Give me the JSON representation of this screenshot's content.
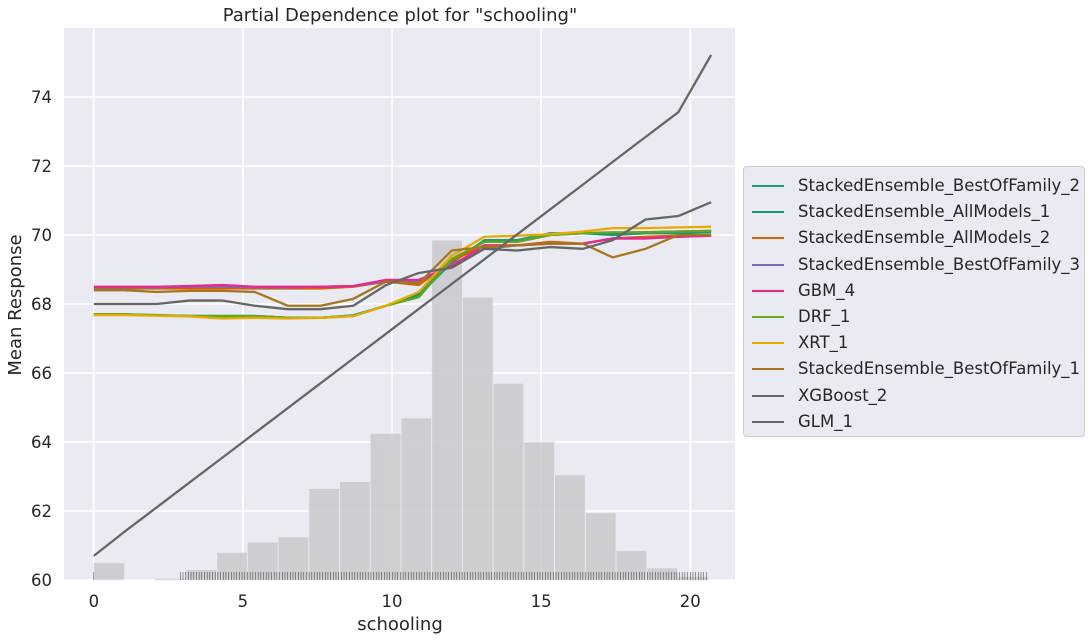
{
  "chart_data": {
    "type": "line",
    "title": "Partial Dependence plot for \"schooling\"",
    "xlabel": "schooling",
    "ylabel": "Mean Response",
    "xlim": [
      -1,
      21.5
    ],
    "ylim": [
      60,
      76
    ],
    "x_ticks": [
      0,
      5,
      10,
      15,
      20
    ],
    "y_ticks": [
      60,
      62,
      64,
      66,
      68,
      70,
      72,
      74
    ],
    "grid": true,
    "legend_position": "right",
    "x": [
      0,
      1.0,
      2.1,
      3.2,
      4.3,
      5.4,
      6.5,
      7.6,
      8.7,
      9.8,
      10.9,
      12.0,
      13.1,
      14.2,
      15.3,
      16.4,
      17.4,
      18.5,
      19.6,
      20.7
    ],
    "series": [
      {
        "name": "StackedEnsemble_BestOfFamily_2",
        "color": "#1b9e77",
        "values": [
          67.7,
          67.7,
          67.67,
          67.65,
          67.65,
          67.65,
          67.6,
          67.6,
          67.67,
          67.95,
          68.25,
          69.2,
          69.85,
          69.85,
          70.05,
          70.05,
          70.05,
          70.08,
          70.1,
          70.12
        ]
      },
      {
        "name": "StackedEnsemble_AllModels_1",
        "color": "#16977a",
        "values": [
          67.7,
          67.7,
          67.67,
          67.65,
          67.65,
          67.65,
          67.6,
          67.6,
          67.67,
          67.95,
          68.3,
          69.3,
          69.8,
          69.8,
          70.0,
          70.05,
          70.0,
          70.05,
          70.05,
          70.08
        ]
      },
      {
        "name": "StackedEnsemble_AllModels_2",
        "color": "#d95f02",
        "values": [
          68.45,
          68.45,
          68.45,
          68.45,
          68.45,
          68.45,
          68.45,
          68.45,
          68.5,
          68.65,
          68.55,
          69.25,
          69.7,
          69.7,
          69.8,
          69.75,
          69.9,
          69.95,
          69.98,
          70.0
        ]
      },
      {
        "name": "StackedEnsemble_BestOfFamily_3",
        "color": "#7570b3",
        "values": [
          68.48,
          68.48,
          68.48,
          68.5,
          68.5,
          68.48,
          68.48,
          68.5,
          68.52,
          68.65,
          68.65,
          69.15,
          69.6,
          69.7,
          69.75,
          69.75,
          69.9,
          69.9,
          69.95,
          69.98
        ]
      },
      {
        "name": "GBM_4",
        "color": "#e7298a",
        "values": [
          68.5,
          68.5,
          68.5,
          68.52,
          68.55,
          68.5,
          68.5,
          68.5,
          68.52,
          68.7,
          68.7,
          69.1,
          69.7,
          69.7,
          69.75,
          69.75,
          69.9,
          69.9,
          69.95,
          69.98
        ]
      },
      {
        "name": "DRF_1",
        "color": "#66a61e",
        "values": [
          67.7,
          67.7,
          67.68,
          67.65,
          67.65,
          67.65,
          67.6,
          67.6,
          67.65,
          67.95,
          68.2,
          69.3,
          69.8,
          69.8,
          70.0,
          70.05,
          70.08,
          70.08,
          70.1,
          70.12
        ]
      },
      {
        "name": "XRT_1",
        "color": "#e6ab02",
        "values": [
          67.68,
          67.68,
          67.66,
          67.64,
          67.58,
          67.6,
          67.58,
          67.6,
          67.65,
          67.95,
          68.35,
          69.4,
          69.95,
          69.98,
          70.02,
          70.1,
          70.2,
          70.2,
          70.22,
          70.24
        ]
      },
      {
        "name": "StackedEnsemble_BestOfFamily_1",
        "color": "#a6761d",
        "values": [
          68.4,
          68.4,
          68.35,
          68.38,
          68.38,
          68.35,
          67.95,
          67.95,
          68.15,
          68.65,
          68.6,
          69.55,
          69.65,
          69.7,
          69.75,
          69.75,
          69.35,
          69.6,
          70.0,
          70.0
        ]
      },
      {
        "name": "XGBoost_2",
        "color": "#666666",
        "values": [
          68.0,
          68.0,
          68.0,
          68.1,
          68.1,
          67.95,
          67.85,
          67.85,
          67.95,
          68.55,
          68.9,
          69.05,
          69.6,
          69.55,
          69.65,
          69.6,
          69.85,
          70.45,
          70.55,
          70.95
        ]
      },
      {
        "name": "GLM_1",
        "color": "#666666",
        "values": [
          60.7,
          61.38,
          62.1,
          62.82,
          63.54,
          64.26,
          64.98,
          65.7,
          66.42,
          67.14,
          67.86,
          68.58,
          69.3,
          70.02,
          70.74,
          71.46,
          72.12,
          72.84,
          73.56,
          75.22
        ]
      }
    ],
    "histogram": {
      "bins": [
        [
          0,
          1.03,
          0.5
        ],
        [
          1.03,
          2.06,
          0.0
        ],
        [
          2.06,
          3.09,
          0.05
        ],
        [
          3.09,
          4.12,
          0.3
        ],
        [
          4.12,
          5.15,
          0.8
        ],
        [
          5.15,
          6.18,
          1.1
        ],
        [
          6.18,
          7.21,
          1.25
        ],
        [
          7.21,
          8.24,
          2.65
        ],
        [
          8.24,
          9.27,
          2.85
        ],
        [
          9.27,
          10.3,
          4.25
        ],
        [
          10.3,
          11.33,
          4.7
        ],
        [
          11.33,
          12.36,
          9.85
        ],
        [
          12.36,
          13.39,
          8.2
        ],
        [
          13.39,
          14.42,
          5.7
        ],
        [
          14.42,
          15.45,
          4.0
        ],
        [
          15.45,
          16.48,
          3.05
        ],
        [
          16.48,
          17.51,
          1.95
        ],
        [
          17.51,
          18.54,
          0.85
        ],
        [
          18.54,
          19.57,
          0.35
        ],
        [
          19.57,
          20.6,
          0.1
        ]
      ],
      "color": "#c9c9cc"
    }
  }
}
